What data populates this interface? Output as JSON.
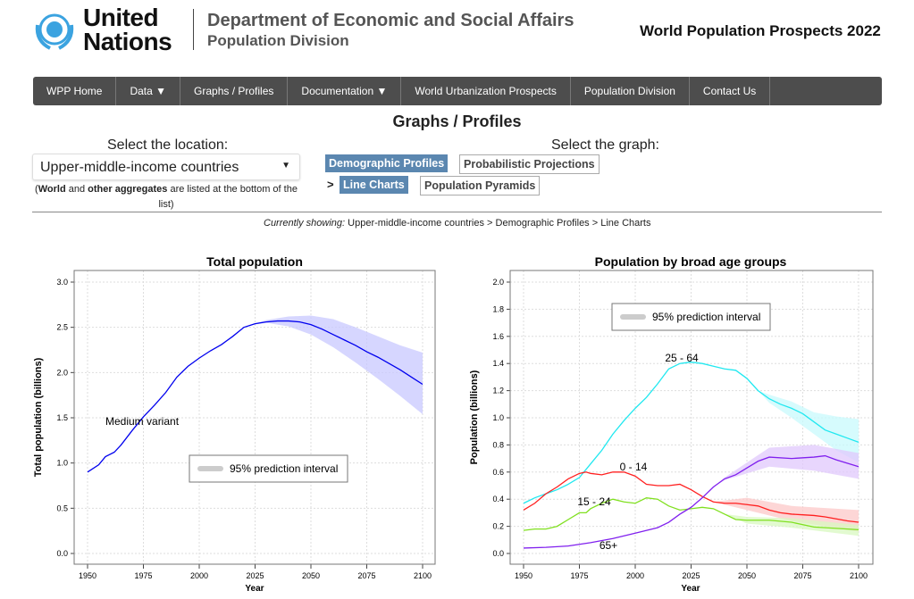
{
  "header": {
    "org_line1": "United",
    "org_line2": "Nations",
    "dept": "Department of Economic and Social Affairs",
    "division": "Population Division",
    "product": "World Population Prospects 2022"
  },
  "nav": [
    {
      "label": "WPP Home"
    },
    {
      "label": "Data ▼"
    },
    {
      "label": "Graphs / Profiles"
    },
    {
      "label": "Documentation ▼"
    },
    {
      "label": "World Urbanization Prospects"
    },
    {
      "label": "Population Division"
    },
    {
      "label": "Contact Us"
    }
  ],
  "page_title": "Graphs / Profiles",
  "location": {
    "label": "Select the location:",
    "selected": "Upper-middle-income countries",
    "note_b1": "World",
    "note_t1": " and ",
    "note_b2": "other aggregates",
    "note_t2": " are listed at the bottom of the list)",
    "note_open": "("
  },
  "graph": {
    "label": "Select the graph:",
    "buttons": [
      "Demographic Profiles",
      "Probabilistic Projections",
      "Line Charts",
      "Population Pyramids"
    ],
    "arrow": ">"
  },
  "current": {
    "prefix": "Currently showing:",
    "path": " Upper-middle-income countries > Demographic Profiles > Line Charts"
  },
  "colors": {
    "nav_bg": "#4d4d4d",
    "active_btn": "#5b87b0",
    "total": "#0000ee",
    "band_total": "#c8c8ff",
    "age_0_14": "#ff2020",
    "age_15_24": "#80e020",
    "age_25_64": "#20e8f0",
    "age_65": "#8020ee"
  },
  "chart_data": [
    {
      "type": "line",
      "title": "Total population",
      "xlabel": "Year",
      "ylabel": "Total population (billions)",
      "xlim": [
        1950,
        2100
      ],
      "ylim": [
        0,
        3
      ],
      "xticks": [
        1950,
        1975,
        2000,
        2025,
        2050,
        2075,
        2100
      ],
      "yticks": [
        "0.0",
        "0.5",
        "1.0",
        "1.5",
        "2.0",
        "2.5",
        "3.0"
      ],
      "grid": true,
      "annotation": "Medium variant",
      "legend": "95% prediction interval",
      "series": [
        {
          "x": [
            1950,
            1955,
            1958,
            1962,
            1965,
            1970,
            1975,
            1980,
            1985,
            1990,
            1995,
            2000,
            2005,
            2010,
            2015,
            2020,
            2025,
            2030,
            2035,
            2040,
            2045,
            2050,
            2055,
            2060,
            2065,
            2070,
            2075,
            2080,
            2085,
            2090,
            2095,
            2100
          ],
          "y": [
            0.9,
            0.98,
            1.07,
            1.12,
            1.2,
            1.36,
            1.51,
            1.64,
            1.78,
            1.95,
            2.07,
            2.16,
            2.24,
            2.31,
            2.4,
            2.5,
            2.54,
            2.56,
            2.57,
            2.57,
            2.56,
            2.53,
            2.48,
            2.42,
            2.36,
            2.3,
            2.23,
            2.17,
            2.1,
            2.03,
            1.95,
            1.87
          ],
          "color": "#0000ee"
        }
      ],
      "bands": [
        {
          "x": [
            2022,
            2030,
            2040,
            2050,
            2060,
            2070,
            2080,
            2090,
            2100
          ],
          "lo": [
            2.52,
            2.55,
            2.51,
            2.42,
            2.28,
            2.11,
            1.93,
            1.74,
            1.54
          ],
          "hi": [
            2.52,
            2.58,
            2.62,
            2.63,
            2.59,
            2.5,
            2.4,
            2.3,
            2.22
          ],
          "color": "#c8c8ff"
        }
      ]
    },
    {
      "type": "line",
      "title": "Population by broad age groups",
      "xlabel": "Year",
      "ylabel": "Population (billions)",
      "xlim": [
        1950,
        2100
      ],
      "ylim": [
        0,
        2
      ],
      "xticks": [
        1950,
        1975,
        2000,
        2025,
        2050,
        2075,
        2100
      ],
      "yticks": [
        "0.0",
        "0.2",
        "0.4",
        "0.6",
        "0.8",
        "1.0",
        "1.2",
        "1.4",
        "1.6",
        "1.8",
        "2.0"
      ],
      "grid": true,
      "legend": "95% prediction interval",
      "series": [
        {
          "name": "25 - 64",
          "color": "#20e8f0",
          "x": [
            1950,
            1955,
            1960,
            1965,
            1970,
            1975,
            1980,
            1985,
            1990,
            1995,
            2000,
            2005,
            2010,
            2015,
            2020,
            2025,
            2030,
            2035,
            2040,
            2045,
            2050,
            2055,
            2060,
            2065,
            2070,
            2075,
            2080,
            2085,
            2090,
            2095,
            2100
          ],
          "y": [
            0.37,
            0.41,
            0.44,
            0.47,
            0.51,
            0.56,
            0.66,
            0.76,
            0.88,
            0.98,
            1.07,
            1.15,
            1.25,
            1.36,
            1.4,
            1.41,
            1.4,
            1.38,
            1.36,
            1.35,
            1.29,
            1.2,
            1.14,
            1.1,
            1.07,
            1.03,
            0.97,
            0.91,
            0.88,
            0.85,
            0.82
          ]
        },
        {
          "name": "0 - 14",
          "color": "#ff2020",
          "x": [
            1950,
            1955,
            1960,
            1965,
            1970,
            1975,
            1978,
            1980,
            1985,
            1990,
            1995,
            2000,
            2005,
            2010,
            2015,
            2020,
            2025,
            2030,
            2035,
            2040,
            2045,
            2050,
            2055,
            2060,
            2065,
            2070,
            2075,
            2080,
            2085,
            2090,
            2095,
            2100
          ],
          "y": [
            0.32,
            0.37,
            0.44,
            0.49,
            0.55,
            0.59,
            0.6,
            0.59,
            0.58,
            0.6,
            0.6,
            0.57,
            0.51,
            0.5,
            0.5,
            0.51,
            0.47,
            0.42,
            0.38,
            0.37,
            0.37,
            0.36,
            0.35,
            0.32,
            0.3,
            0.29,
            0.285,
            0.28,
            0.27,
            0.255,
            0.24,
            0.23
          ]
        },
        {
          "name": "15 - 24",
          "color": "#80e020",
          "x": [
            1950,
            1955,
            1960,
            1965,
            1970,
            1975,
            1978,
            1980,
            1985,
            1990,
            1995,
            2000,
            2005,
            2010,
            2015,
            2020,
            2025,
            2030,
            2035,
            2040,
            2045,
            2050,
            2060,
            2070,
            2080,
            2090,
            2100
          ],
          "y": [
            0.17,
            0.18,
            0.18,
            0.2,
            0.25,
            0.3,
            0.3,
            0.33,
            0.37,
            0.4,
            0.38,
            0.37,
            0.41,
            0.4,
            0.35,
            0.32,
            0.33,
            0.34,
            0.33,
            0.29,
            0.25,
            0.245,
            0.245,
            0.23,
            0.195,
            0.185,
            0.175
          ]
        },
        {
          "name": "65+",
          "color": "#8020ee",
          "x": [
            1950,
            1960,
            1970,
            1980,
            1990,
            2000,
            2010,
            2015,
            2020,
            2025,
            2030,
            2035,
            2040,
            2045,
            2050,
            2055,
            2060,
            2070,
            2080,
            2085,
            2090,
            2100
          ],
          "y": [
            0.04,
            0.045,
            0.055,
            0.08,
            0.11,
            0.15,
            0.19,
            0.23,
            0.29,
            0.34,
            0.41,
            0.49,
            0.55,
            0.58,
            0.63,
            0.68,
            0.71,
            0.7,
            0.71,
            0.72,
            0.69,
            0.64
          ]
        }
      ],
      "bands": [
        {
          "color": "#c8fafc",
          "x": [
            2055,
            2060,
            2070,
            2080,
            2090,
            2100
          ],
          "lo": [
            1.2,
            1.11,
            1.0,
            0.88,
            0.76,
            0.67
          ],
          "hi": [
            1.2,
            1.17,
            1.12,
            1.04,
            1.01,
            0.99
          ]
        },
        {
          "color": "#fcc8c8",
          "x": [
            2035,
            2050,
            2070,
            2100
          ],
          "lo": [
            0.38,
            0.32,
            0.24,
            0.16
          ],
          "hi": [
            0.38,
            0.41,
            0.35,
            0.32
          ]
        },
        {
          "color": "#d8f8c0",
          "x": [
            2040,
            2050,
            2070,
            2100
          ],
          "lo": [
            0.29,
            0.22,
            0.19,
            0.13
          ],
          "hi": [
            0.29,
            0.27,
            0.26,
            0.21
          ]
        },
        {
          "color": "#e0c8fc",
          "x": [
            2035,
            2040,
            2060,
            2080,
            2100
          ],
          "lo": [
            0.49,
            0.54,
            0.64,
            0.61,
            0.55
          ],
          "hi": [
            0.49,
            0.56,
            0.78,
            0.8,
            0.74
          ]
        }
      ]
    }
  ]
}
